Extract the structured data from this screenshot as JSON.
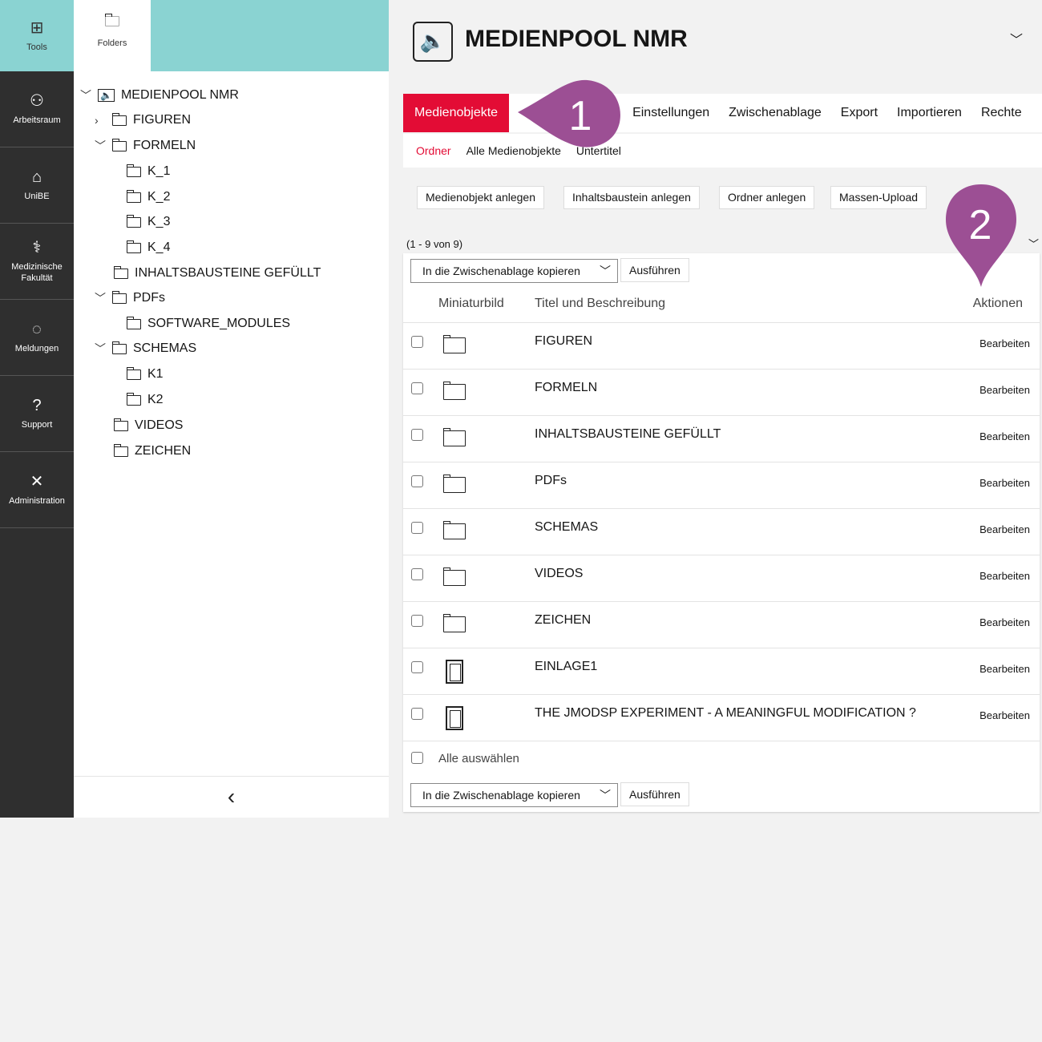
{
  "sidebar": {
    "items": [
      {
        "label": "Tools",
        "icon": "grid-icon"
      },
      {
        "label": "Arbeitsraum",
        "icon": "user-icon"
      },
      {
        "label": "UniBE",
        "icon": "building-icon"
      },
      {
        "label": "Medizinische Fakultät",
        "icon": "caduceus-icon"
      },
      {
        "label": "Meldungen",
        "icon": "chat-icon"
      },
      {
        "label": "Support",
        "icon": "question-icon"
      },
      {
        "label": "Administration",
        "icon": "tools-icon"
      }
    ]
  },
  "folders_tab": "Folders",
  "tree": {
    "root": "MEDIENPOOL NMR",
    "nodes": [
      "FIGUREN",
      "FORMELN",
      "K_1",
      "K_2",
      "K_3",
      "K_4",
      "INHALTSBAUSTEINE GEFÜLLT",
      "PDFs",
      "SOFTWARE_MODULES",
      "SCHEMAS",
      "K1",
      "K2",
      "VIDEOS",
      "ZEICHEN"
    ],
    "collapse": "‹"
  },
  "header": {
    "title": "MEDIENPOOL NMR"
  },
  "tabs": [
    "Medienobjekte",
    "Einstellungen",
    "Zwischenablage",
    "Export",
    "Importieren",
    "Rechte"
  ],
  "subtabs": [
    "Ordner",
    "Alle Medienobjekte",
    "Untertitel"
  ],
  "actions": [
    "Medienobjekt anlegen",
    "Inhaltsbaustein anlegen",
    "Ordner anlegen",
    "Massen-Upload"
  ],
  "count": "(1 - 9 von 9)",
  "bulk": {
    "select": "In die Zwischenablage kopieren",
    "run": "Ausführen"
  },
  "table": {
    "headers": [
      "Miniaturbild",
      "Titel und Beschreibung",
      "Aktionen"
    ],
    "rows": [
      {
        "title": "FIGUREN",
        "type": "folder",
        "action": "Bearbeiten"
      },
      {
        "title": "FORMELN",
        "type": "folder",
        "action": "Bearbeiten"
      },
      {
        "title": "INHALTSBAUSTEINE GEFÜLLT",
        "type": "folder",
        "action": "Bearbeiten"
      },
      {
        "title": "PDFs",
        "type": "folder",
        "action": "Bearbeiten"
      },
      {
        "title": "SCHEMAS",
        "type": "folder",
        "action": "Bearbeiten"
      },
      {
        "title": "VIDEOS",
        "type": "folder",
        "action": "Bearbeiten"
      },
      {
        "title": "ZEICHEN",
        "type": "folder",
        "action": "Bearbeiten"
      },
      {
        "title": "EINLAGE1",
        "type": "document",
        "action": "Bearbeiten"
      },
      {
        "title": "THE JMODSP EXPERIMENT - A MEANINGFUL MODIFICATION ?",
        "type": "document",
        "action": "Bearbeiten"
      }
    ],
    "select_all": "Alle auswählen"
  },
  "callouts": [
    "1",
    "2"
  ],
  "colors": {
    "accent": "#e30c35",
    "teal": "#8ad3d2",
    "callout": "#9c4f94",
    "sidebar": "#2f2f2f"
  }
}
